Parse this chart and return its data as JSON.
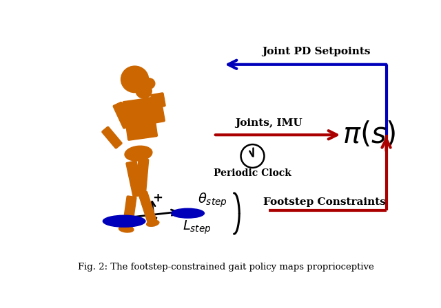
{
  "fig_width": 6.4,
  "fig_height": 4.48,
  "dpi": 100,
  "bg_color": "#ffffff",
  "robot_color": "#CC6600",
  "blue_color": "#0000BB",
  "red_color": "#AA0000",
  "black_color": "#000000",
  "pi_text": "$\\pi(s)$",
  "joint_pd_text": "Joint PD Setpoints",
  "joints_imu_text": "Joints, IMU",
  "periodic_clock_text": "Periodic Clock",
  "footstep_constraints_text": "Footstep Constraints",
  "theta_step_text": "$\\theta_{step}$",
  "l_step_text": "$L_{step}$",
  "caption": "Fig. 2: The footstep-constrained gait policy maps proprioceptive",
  "arrow_lw": 3.0,
  "caption_fontsize": 9.5
}
